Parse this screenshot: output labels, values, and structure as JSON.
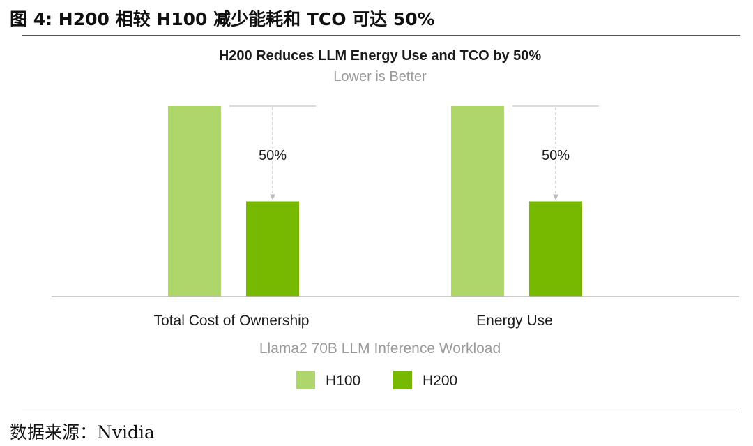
{
  "figure": {
    "caption": "图 4: H200 相较 H100 减少能耗和 TCO 可达 50%",
    "source": "数据来源：Nvidia"
  },
  "chart_data": {
    "type": "bar",
    "title": "H200 Reduces LLM Energy Use and TCO by 50%",
    "subtitle": "Lower is Better",
    "xlabel": "Llama2 70B LLM Inference Workload",
    "ylabel": "",
    "categories": [
      "Total Cost of Ownership",
      "Energy Use"
    ],
    "series": [
      {
        "name": "H100",
        "values": [
          100,
          100
        ],
        "color": "#aed66b"
      },
      {
        "name": "H200",
        "values": [
          50,
          50
        ],
        "color": "#76b900"
      }
    ],
    "annotations": [
      "50%",
      "50%"
    ],
    "ylim": [
      0,
      100
    ],
    "grid": false,
    "legend": "bottom-center"
  }
}
